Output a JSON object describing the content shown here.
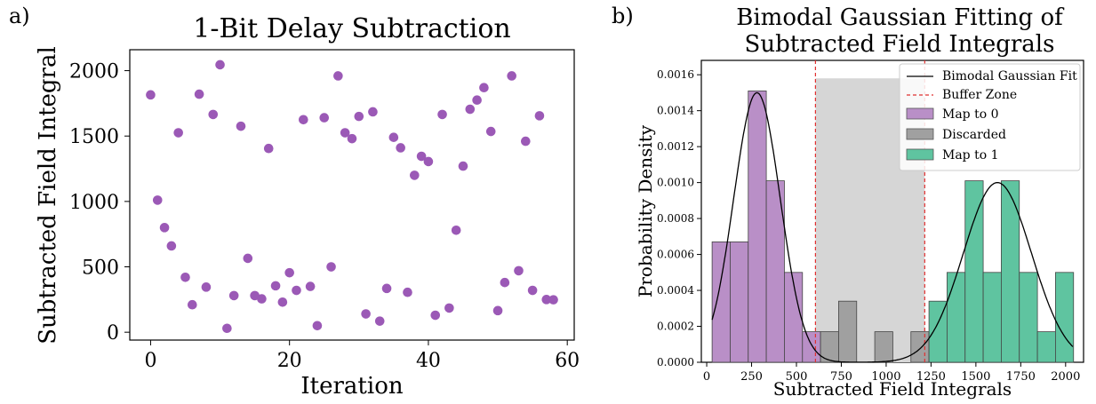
{
  "figure": {
    "panel_a_label": "a)",
    "panel_b_label": "b)"
  },
  "colors": {
    "purple": "#9b59b6",
    "purple_hist": "#b98fc7",
    "gray_hist": "#a0a0a0",
    "buffer_shade": "#d6d6d6",
    "green_hist": "#5fc4a0",
    "fit_line": "#000000",
    "buffer_line": "#e03030"
  },
  "chart_data": [
    {
      "type": "scatter",
      "title": "1-Bit Delay Subtraction",
      "xlabel": "Iteration",
      "ylabel": "Subtracted Field Integral",
      "xlim": [
        -3,
        61
      ],
      "ylim": [
        -60,
        2160
      ],
      "xticks": [
        0,
        20,
        40,
        60
      ],
      "yticks": [
        0,
        500,
        1000,
        1500,
        2000
      ],
      "grid": false,
      "series": [
        {
          "x": [
            0,
            1,
            2,
            3,
            4,
            5,
            6,
            7,
            8,
            9,
            10,
            11,
            12,
            13,
            14,
            15,
            16,
            17,
            18,
            19,
            20,
            21,
            22,
            23,
            24,
            25,
            26,
            27,
            28,
            29,
            30,
            31,
            32,
            33,
            34,
            35,
            36,
            37,
            38,
            39,
            40,
            41,
            42,
            43,
            44,
            45,
            46,
            47,
            48,
            49,
            50,
            51,
            52,
            53,
            54,
            55,
            56,
            57,
            58
          ],
          "y": [
            1815,
            1010,
            800,
            660,
            1525,
            420,
            210,
            1820,
            345,
            1665,
            2045,
            30,
            280,
            1575,
            565,
            280,
            255,
            1405,
            355,
            230,
            455,
            320,
            1625,
            350,
            50,
            1640,
            500,
            1960,
            1525,
            1480,
            1650,
            140,
            1685,
            85,
            335,
            1490,
            1410,
            305,
            1200,
            1345,
            1305,
            130,
            1665,
            185,
            780,
            1270,
            1705,
            1775,
            1870,
            1535,
            165,
            380,
            1960,
            470,
            1460,
            320,
            1655,
            250,
            248
          ]
        }
      ]
    },
    {
      "type": "bar",
      "title": "Bimodal Gaussian Fitting of Subtracted Field Integrals",
      "xlabel": "Subtracted Field Integrals",
      "ylabel": "Probability Density",
      "xlim": [
        -30,
        2100
      ],
      "ylim": [
        0,
        0.00168
      ],
      "xticks": [
        0,
        250,
        500,
        750,
        1000,
        1250,
        1500,
        1750,
        2000
      ],
      "yticks": [
        0.0,
        0.0002,
        0.0004,
        0.0006,
        0.0008,
        0.001,
        0.0012,
        0.0014,
        0.0016
      ],
      "legend_position": "top-right",
      "legend": [
        "Bimodal Gaussian Fit",
        "Buffer Zone",
        "Map to 0",
        "Discarded",
        "Map to 1"
      ],
      "bin_edges": [
        30,
        130.7,
        231.4,
        332.1,
        432.9,
        533.6,
        634.3,
        735,
        835.7,
        936.4,
        1037.1,
        1137.9,
        1238.6,
        1339.3,
        1440,
        1540.7,
        1641.4,
        1742.1,
        1842.9,
        1943.6,
        2044.3
      ],
      "groups": [
        {
          "name": "Map to 0",
          "values": [
            0.00067,
            0.00067,
            0.00151,
            0.00101,
            0.0005,
            0.00017
          ]
        },
        {
          "name": "Discarded",
          "values": [
            0.00017,
            0.00034,
            0,
            0.00017,
            0,
            0.00017
          ]
        },
        {
          "name": "Map to 1",
          "values": [
            0.00034,
            0.0005,
            0.00101,
            0.0005,
            0.00101,
            0.0005,
            0.00017,
            0.0005
          ]
        }
      ],
      "buffer_zone": [
        606,
        1215
      ],
      "fit": {
        "mu1": 280,
        "sigma1": 130,
        "amp1": 0.0015,
        "mu2": 1620,
        "sigma2": 190,
        "amp2": 0.001
      }
    }
  ]
}
